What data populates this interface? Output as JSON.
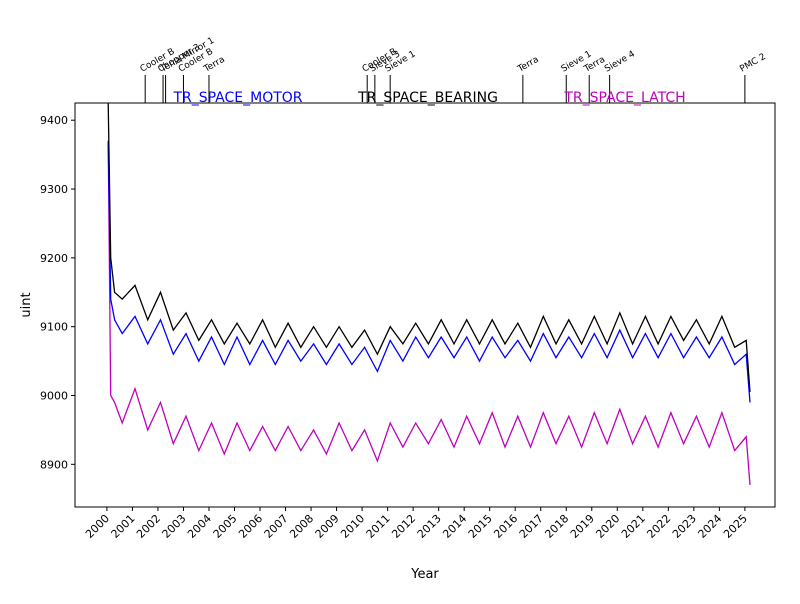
{
  "chart_data": {
    "type": "line",
    "xlabel": "Year",
    "ylabel": "uint",
    "xlim": [
      1998.75,
      2026.18
    ],
    "ylim": [
      8838,
      9425
    ],
    "xticks": [
      2000,
      2001,
      2002,
      2003,
      2004,
      2005,
      2006,
      2007,
      2008,
      2009,
      2010,
      2011,
      2012,
      2013,
      2014,
      2015,
      2016,
      2017,
      2018,
      2019,
      2020,
      2021,
      2022,
      2023,
      2024,
      2025
    ],
    "yticks": [
      8900,
      9000,
      9100,
      9200,
      9300,
      9400
    ],
    "x": [
      2000.05,
      2000.15,
      2000.3,
      2000.6,
      2001.1,
      2001.6,
      2002.1,
      2002.6,
      2003.1,
      2003.6,
      2004.1,
      2004.6,
      2005.1,
      2005.6,
      2006.1,
      2006.6,
      2007.1,
      2007.6,
      2008.1,
      2008.6,
      2009.1,
      2009.6,
      2010.1,
      2010.6,
      2011.1,
      2011.6,
      2012.1,
      2012.6,
      2013.1,
      2013.6,
      2014.1,
      2014.6,
      2015.1,
      2015.6,
      2016.1,
      2016.6,
      2017.1,
      2017.6,
      2018.1,
      2018.6,
      2019.1,
      2019.6,
      2020.1,
      2020.6,
      2021.1,
      2021.6,
      2022.1,
      2022.6,
      2023.1,
      2023.6,
      2024.1,
      2024.6,
      2025.05,
      2025.2
    ],
    "series": [
      {
        "name": "TR_SPACE_MOTOR",
        "color": "#0000ff",
        "values": [
          9370,
          9140,
          9110,
          9090,
          9115,
          9075,
          9110,
          9060,
          9090,
          9050,
          9085,
          9045,
          9085,
          9045,
          9080,
          9045,
          9080,
          9050,
          9075,
          9045,
          9075,
          9045,
          9070,
          9035,
          9080,
          9050,
          9085,
          9055,
          9085,
          9055,
          9085,
          9050,
          9085,
          9055,
          9080,
          9050,
          9090,
          9055,
          9085,
          9055,
          9090,
          9055,
          9095,
          9055,
          9090,
          9055,
          9090,
          9055,
          9085,
          9055,
          9085,
          9045,
          9060,
          8990
        ]
      },
      {
        "name": "TR_SPACE_BEARING",
        "color": "#000000",
        "values": [
          9425,
          9200,
          9150,
          9140,
          9160,
          9110,
          9150,
          9095,
          9120,
          9080,
          9110,
          9075,
          9105,
          9075,
          9110,
          9070,
          9105,
          9070,
          9100,
          9070,
          9100,
          9070,
          9095,
          9060,
          9100,
          9075,
          9105,
          9075,
          9110,
          9075,
          9110,
          9075,
          9110,
          9075,
          9105,
          9070,
          9115,
          9075,
          9110,
          9075,
          9115,
          9075,
          9120,
          9075,
          9115,
          9075,
          9115,
          9080,
          9110,
          9075,
          9115,
          9070,
          9080,
          9005
        ]
      },
      {
        "name": "TR_SPACE_LATCH",
        "color": "#bf00bf",
        "values": [
          9370,
          9000,
          8990,
          8960,
          9010,
          8950,
          8990,
          8930,
          8970,
          8920,
          8960,
          8915,
          8960,
          8920,
          8955,
          8920,
          8955,
          8920,
          8950,
          8915,
          8960,
          8920,
          8950,
          8905,
          8960,
          8925,
          8960,
          8930,
          8965,
          8925,
          8970,
          8930,
          8975,
          8925,
          8970,
          8925,
          8975,
          8930,
          8970,
          8925,
          8975,
          8930,
          8980,
          8930,
          8970,
          8925,
          8975,
          8930,
          8970,
          8925,
          8975,
          8920,
          8940,
          8870
        ]
      }
    ],
    "events": [
      {
        "x": 2001.5,
        "label": "Cooler B"
      },
      {
        "x": 2002.2,
        "label": "Chopper 3"
      },
      {
        "x": 2002.3,
        "label": "Terra Mirror 1"
      },
      {
        "x": 2003.0,
        "label": "Cooler B"
      },
      {
        "x": 2004.0,
        "label": "Terra"
      },
      {
        "x": 2010.2,
        "label": "Cooler B"
      },
      {
        "x": 2010.5,
        "label": "Sieve 3"
      },
      {
        "x": 2011.1,
        "label": "Sieve 1"
      },
      {
        "x": 2016.3,
        "label": "Terra"
      },
      {
        "x": 2018.0,
        "label": "Sieve 1"
      },
      {
        "x": 2018.9,
        "label": "Terra"
      },
      {
        "x": 2019.7,
        "label": "Sieve 4"
      },
      {
        "x": 2025.0,
        "label": "PMC 2"
      }
    ]
  }
}
